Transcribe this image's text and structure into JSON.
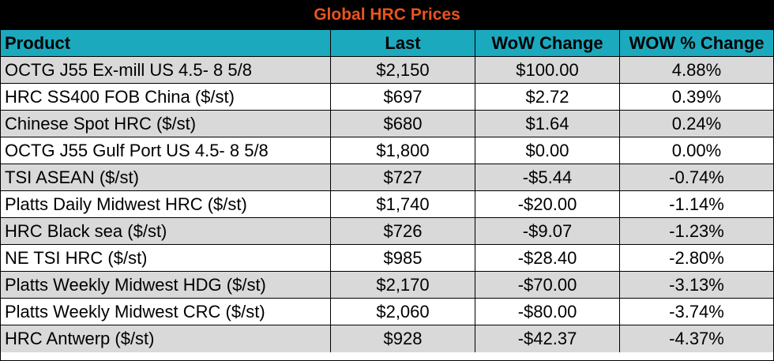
{
  "title": "Global HRC Prices",
  "colors": {
    "title_bg": "#000000",
    "title_text": "#E8541E",
    "header_bg": "#1BA9BE",
    "row_gray": "#D9D9D9",
    "row_white": "#FFFFFF"
  },
  "headers": [
    "Product",
    "Last",
    "WoW Change",
    "WOW % Change"
  ],
  "rows": [
    [
      "OCTG J55 Ex-mill US 4.5- 8 5/8",
      "$2,150",
      "$100.00",
      "4.88%"
    ],
    [
      "HRC SS400 FOB China ($/st)",
      "$697",
      "$2.72",
      "0.39%"
    ],
    [
      "Chinese Spot HRC ($/st)",
      "$680",
      "$1.64",
      "0.24%"
    ],
    [
      "OCTG J55 Gulf Port US 4.5- 8 5/8",
      "$1,800",
      "$0.00",
      "0.00%"
    ],
    [
      "TSI ASEAN ($/st)",
      "$727",
      "-$5.44",
      "-0.74%"
    ],
    [
      "Platts Daily Midwest HRC ($/st)",
      "$1,740",
      "-$20.00",
      "-1.14%"
    ],
    [
      "HRC Black sea ($/st)",
      "$726",
      "-$9.07",
      "-1.23%"
    ],
    [
      "NE TSI HRC ($/st)",
      "$985",
      "-$28.40",
      "-2.80%"
    ],
    [
      "Platts Weekly Midwest HDG ($/st)",
      "$2,170",
      "-$70.00",
      "-3.13%"
    ],
    [
      "Platts Weekly Midwest CRC ($/st)",
      "$2,060",
      "-$80.00",
      "-3.74%"
    ],
    [
      "HRC Antwerp ($/st)",
      "$928",
      "-$42.37",
      "-4.37%"
    ]
  ]
}
